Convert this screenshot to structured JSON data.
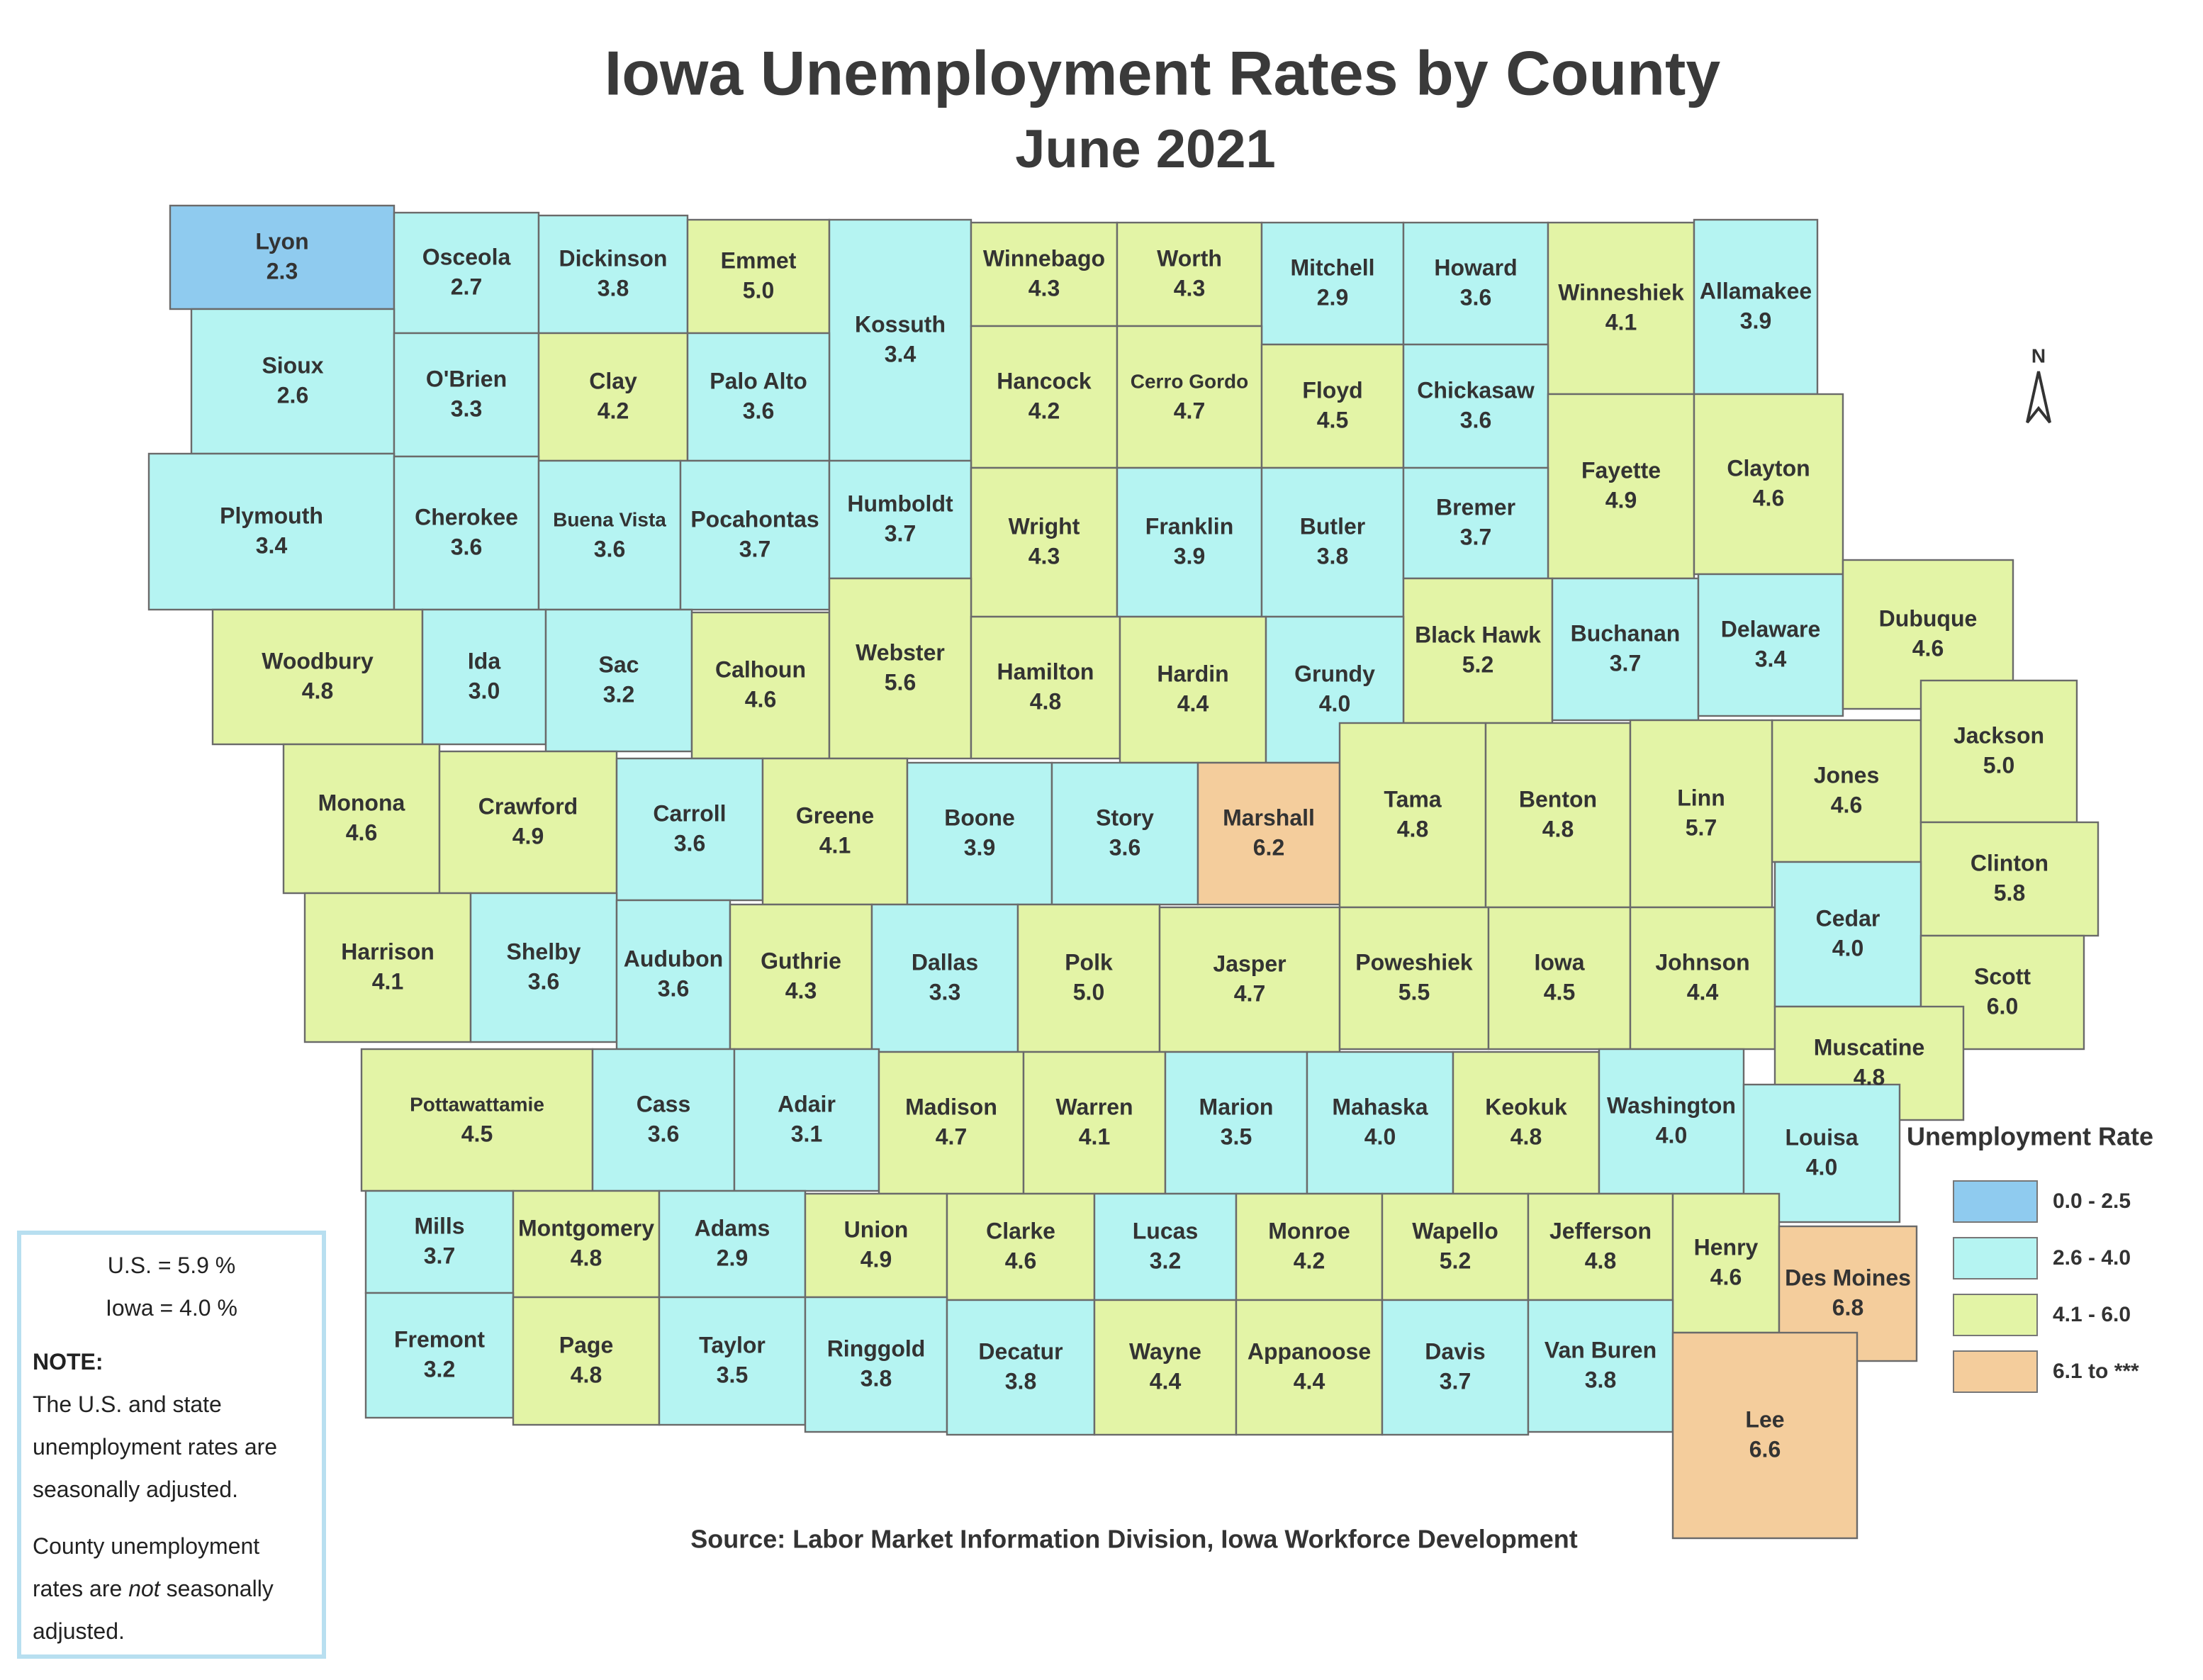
{
  "header": {
    "title": "Iowa Unemployment Rates by County",
    "subtitle": "June 2021"
  },
  "counties": [
    {
      "name": "Lyon",
      "rate": "2.3",
      "color": "#8fcbef"
    },
    {
      "name": "Osceola",
      "rate": "2.7",
      "color": "#b5f4f2"
    },
    {
      "name": "Dickinson",
      "rate": "3.8",
      "color": "#b5f4f2"
    },
    {
      "name": "Emmet",
      "rate": "5.0",
      "color": "#e3f4a6"
    },
    {
      "name": "Kossuth",
      "rate": "3.4",
      "color": "#b5f4f2"
    },
    {
      "name": "Winnebago",
      "rate": "4.3",
      "color": "#e3f4a6"
    },
    {
      "name": "Worth",
      "rate": "4.3",
      "color": "#e3f4a6"
    },
    {
      "name": "Mitchell",
      "rate": "2.9",
      "color": "#b5f4f2"
    },
    {
      "name": "Howard",
      "rate": "3.6",
      "color": "#b5f4f2"
    },
    {
      "name": "Winneshiek",
      "rate": "4.1",
      "color": "#e3f4a6"
    },
    {
      "name": "Allamakee",
      "rate": "3.9",
      "color": "#b5f4f2"
    },
    {
      "name": "Sioux",
      "rate": "2.6",
      "color": "#b5f4f2"
    },
    {
      "name": "O'Brien",
      "rate": "3.3",
      "color": "#b5f4f2"
    },
    {
      "name": "Clay",
      "rate": "4.2",
      "color": "#e3f4a6"
    },
    {
      "name": "Palo Alto",
      "rate": "3.6",
      "color": "#b5f4f2"
    },
    {
      "name": "Hancock",
      "rate": "4.2",
      "color": "#e3f4a6"
    },
    {
      "name": "Cerro Gordo",
      "rate": "4.7",
      "color": "#e3f4a6"
    },
    {
      "name": "Floyd",
      "rate": "4.5",
      "color": "#e3f4a6"
    },
    {
      "name": "Chickasaw",
      "rate": "3.6",
      "color": "#b5f4f2"
    },
    {
      "name": "Fayette",
      "rate": "4.9",
      "color": "#e3f4a6"
    },
    {
      "name": "Clayton",
      "rate": "4.6",
      "color": "#e3f4a6"
    },
    {
      "name": "Plymouth",
      "rate": "3.4",
      "color": "#b5f4f2"
    },
    {
      "name": "Cherokee",
      "rate": "3.6",
      "color": "#b5f4f2"
    },
    {
      "name": "Buena Vista",
      "rate": "3.6",
      "color": "#b5f4f2"
    },
    {
      "name": "Pocahontas",
      "rate": "3.7",
      "color": "#b5f4f2"
    },
    {
      "name": "Humboldt",
      "rate": "3.7",
      "color": "#b5f4f2"
    },
    {
      "name": "Wright",
      "rate": "4.3",
      "color": "#e3f4a6"
    },
    {
      "name": "Franklin",
      "rate": "3.9",
      "color": "#b5f4f2"
    },
    {
      "name": "Butler",
      "rate": "3.8",
      "color": "#b5f4f2"
    },
    {
      "name": "Bremer",
      "rate": "3.7",
      "color": "#b5f4f2"
    },
    {
      "name": "Black Hawk",
      "rate": "5.2",
      "color": "#e3f4a6"
    },
    {
      "name": "Buchanan",
      "rate": "3.7",
      "color": "#b5f4f2"
    },
    {
      "name": "Delaware",
      "rate": "3.4",
      "color": "#b5f4f2"
    },
    {
      "name": "Dubuque",
      "rate": "4.6",
      "color": "#e3f4a6"
    },
    {
      "name": "Woodbury",
      "rate": "4.8",
      "color": "#e3f4a6"
    },
    {
      "name": "Ida",
      "rate": "3.0",
      "color": "#b5f4f2"
    },
    {
      "name": "Sac",
      "rate": "3.2",
      "color": "#b5f4f2"
    },
    {
      "name": "Calhoun",
      "rate": "4.6",
      "color": "#e3f4a6"
    },
    {
      "name": "Webster",
      "rate": "5.6",
      "color": "#e3f4a6"
    },
    {
      "name": "Hamilton",
      "rate": "4.8",
      "color": "#e3f4a6"
    },
    {
      "name": "Hardin",
      "rate": "4.4",
      "color": "#e3f4a6"
    },
    {
      "name": "Grundy",
      "rate": "4.0",
      "color": "#b5f4f2"
    },
    {
      "name": "Jones",
      "rate": "4.6",
      "color": "#e3f4a6"
    },
    {
      "name": "Jackson",
      "rate": "5.0",
      "color": "#e3f4a6"
    },
    {
      "name": "Monona",
      "rate": "4.6",
      "color": "#e3f4a6"
    },
    {
      "name": "Crawford",
      "rate": "4.9",
      "color": "#e3f4a6"
    },
    {
      "name": "Carroll",
      "rate": "3.6",
      "color": "#b5f4f2"
    },
    {
      "name": "Greene",
      "rate": "4.1",
      "color": "#e3f4a6"
    },
    {
      "name": "Boone",
      "rate": "3.9",
      "color": "#b5f4f2"
    },
    {
      "name": "Story",
      "rate": "3.6",
      "color": "#b5f4f2"
    },
    {
      "name": "Marshall",
      "rate": "6.2",
      "color": "#f4cd9c"
    },
    {
      "name": "Tama",
      "rate": "4.8",
      "color": "#e3f4a6"
    },
    {
      "name": "Benton",
      "rate": "4.8",
      "color": "#e3f4a6"
    },
    {
      "name": "Linn",
      "rate": "5.7",
      "color": "#e3f4a6"
    },
    {
      "name": "Clinton",
      "rate": "5.8",
      "color": "#e3f4a6"
    },
    {
      "name": "Harrison",
      "rate": "4.1",
      "color": "#e3f4a6"
    },
    {
      "name": "Shelby",
      "rate": "3.6",
      "color": "#b5f4f2"
    },
    {
      "name": "Audubon",
      "rate": "3.6",
      "color": "#b5f4f2"
    },
    {
      "name": "Guthrie",
      "rate": "4.3",
      "color": "#e3f4a6"
    },
    {
      "name": "Dallas",
      "rate": "3.3",
      "color": "#b5f4f2"
    },
    {
      "name": "Polk",
      "rate": "5.0",
      "color": "#e3f4a6"
    },
    {
      "name": "Jasper",
      "rate": "4.7",
      "color": "#e3f4a6"
    },
    {
      "name": "Poweshiek",
      "rate": "5.5",
      "color": "#e3f4a6"
    },
    {
      "name": "Iowa",
      "rate": "4.5",
      "color": "#e3f4a6"
    },
    {
      "name": "Johnson",
      "rate": "4.4",
      "color": "#e3f4a6"
    },
    {
      "name": "Cedar",
      "rate": "4.0",
      "color": "#b5f4f2"
    },
    {
      "name": "Scott",
      "rate": "6.0",
      "color": "#e3f4a6"
    },
    {
      "name": "Muscatine",
      "rate": "4.8",
      "color": "#e3f4a6"
    },
    {
      "name": "Pottawattamie",
      "rate": "4.5",
      "color": "#e3f4a6"
    },
    {
      "name": "Cass",
      "rate": "3.6",
      "color": "#b5f4f2"
    },
    {
      "name": "Adair",
      "rate": "3.1",
      "color": "#b5f4f2"
    },
    {
      "name": "Madison",
      "rate": "4.7",
      "color": "#e3f4a6"
    },
    {
      "name": "Warren",
      "rate": "4.1",
      "color": "#e3f4a6"
    },
    {
      "name": "Marion",
      "rate": "3.5",
      "color": "#b5f4f2"
    },
    {
      "name": "Mahaska",
      "rate": "4.0",
      "color": "#b5f4f2"
    },
    {
      "name": "Keokuk",
      "rate": "4.8",
      "color": "#e3f4a6"
    },
    {
      "name": "Washington",
      "rate": "4.0",
      "color": "#b5f4f2"
    },
    {
      "name": "Louisa",
      "rate": "4.0",
      "color": "#b5f4f2"
    },
    {
      "name": "Mills",
      "rate": "3.7",
      "color": "#b5f4f2"
    },
    {
      "name": "Montgomery",
      "rate": "4.8",
      "color": "#e3f4a6"
    },
    {
      "name": "Adams",
      "rate": "2.9",
      "color": "#b5f4f2"
    },
    {
      "name": "Union",
      "rate": "4.9",
      "color": "#e3f4a6"
    },
    {
      "name": "Clarke",
      "rate": "4.6",
      "color": "#e3f4a6"
    },
    {
      "name": "Lucas",
      "rate": "3.2",
      "color": "#b5f4f2"
    },
    {
      "name": "Monroe",
      "rate": "4.2",
      "color": "#e3f4a6"
    },
    {
      "name": "Wapello",
      "rate": "5.2",
      "color": "#e3f4a6"
    },
    {
      "name": "Jefferson",
      "rate": "4.8",
      "color": "#e3f4a6"
    },
    {
      "name": "Henry",
      "rate": "4.6",
      "color": "#e3f4a6"
    },
    {
      "name": "Des Moines",
      "rate": "6.8",
      "color": "#f4cd9c"
    },
    {
      "name": "Fremont",
      "rate": "3.2",
      "color": "#b5f4f2"
    },
    {
      "name": "Page",
      "rate": "4.8",
      "color": "#e3f4a6"
    },
    {
      "name": "Taylor",
      "rate": "3.5",
      "color": "#b5f4f2"
    },
    {
      "name": "Ringgold",
      "rate": "3.8",
      "color": "#b5f4f2"
    },
    {
      "name": "Decatur",
      "rate": "3.8",
      "color": "#b5f4f2"
    },
    {
      "name": "Wayne",
      "rate": "4.4",
      "color": "#e3f4a6"
    },
    {
      "name": "Appanoose",
      "rate": "4.4",
      "color": "#e3f4a6"
    },
    {
      "name": "Davis",
      "rate": "3.7",
      "color": "#b5f4f2"
    },
    {
      "name": "Van Buren",
      "rate": "3.8",
      "color": "#b5f4f2"
    },
    {
      "name": "Lee",
      "rate": "6.6",
      "color": "#f4cd9c"
    }
  ],
  "legend": {
    "title": "Unemployment Rate",
    "items": [
      {
        "label": "0.0 - 2.5",
        "color": "#8fcbef"
      },
      {
        "label": "2.6 - 4.0",
        "color": "#b5f4f2"
      },
      {
        "label": "4.1 - 6.0",
        "color": "#e3f4a6"
      },
      {
        "label": "6.1 to ***",
        "color": "#f4cd9c"
      }
    ]
  },
  "compass": "N",
  "summary": {
    "us": "U.S. = 5.9 %",
    "iowa": "Iowa = 4.0 %",
    "note_heading": "NOTE:",
    "note_1": "The U.S. and state unemployment rates are seasonally adjusted.",
    "note_2": {
      "before": "County unemployment rates are",
      "emphasis": "not",
      "after": "seasonally adjusted."
    }
  },
  "source": "Source: Labor Market Information Division, Iowa Workforce Development"
}
